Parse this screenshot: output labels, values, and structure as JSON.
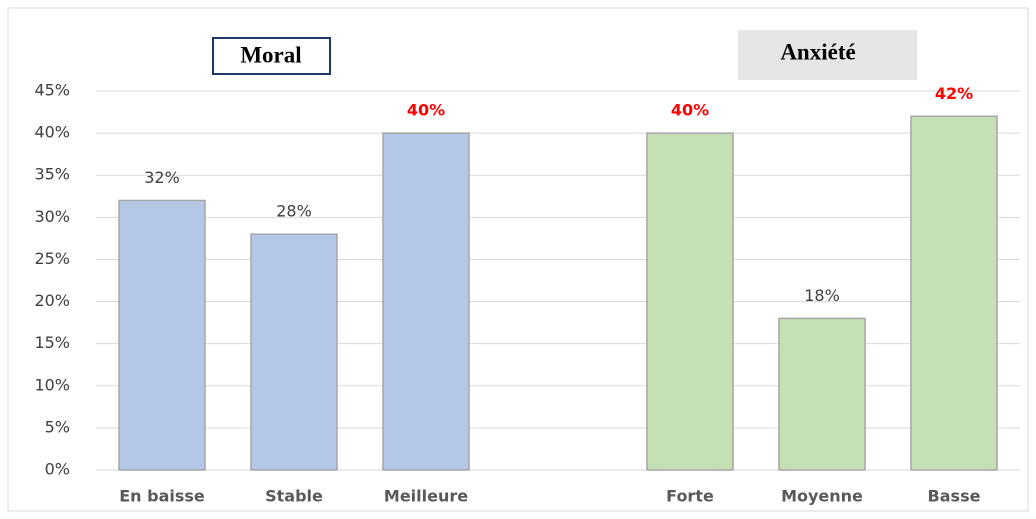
{
  "chart_data": {
    "type": "bar",
    "annotations": [
      "Moral",
      "Anxiété"
    ],
    "categories": [
      "En baisse",
      "Stable",
      "Meilleure",
      null,
      "Forte",
      "Moyenne",
      "Basse"
    ],
    "values": [
      32,
      28,
      40,
      null,
      40,
      18,
      42
    ],
    "value_labels": [
      "32%",
      "28%",
      "40%",
      null,
      "40%",
      "18%",
      "42%"
    ],
    "colors": [
      "#b4c7e7",
      "#b4c7e7",
      "#b4c7e7",
      null,
      "#c5e0b4",
      "#c5e0b4",
      "#c5e0b4"
    ],
    "value_label_colors": [
      "#404040",
      "#404040",
      "#ff0000",
      null,
      "#ff0000",
      "#404040",
      "#ff0000"
    ],
    "ylim": [
      0,
      45
    ],
    "yticks": [
      {
        "value": 0,
        "label": "0%"
      },
      {
        "value": 5,
        "label": "5%"
      },
      {
        "value": 10,
        "label": "10%"
      },
      {
        "value": 15,
        "label": "15%"
      },
      {
        "value": 20,
        "label": "20%"
      },
      {
        "value": 25,
        "label": "25%"
      },
      {
        "value": 30,
        "label": "30%"
      },
      {
        "value": 35,
        "label": "35%"
      },
      {
        "value": 40,
        "label": "40%"
      },
      {
        "value": 45,
        "label": "45%"
      }
    ],
    "grid": true
  }
}
